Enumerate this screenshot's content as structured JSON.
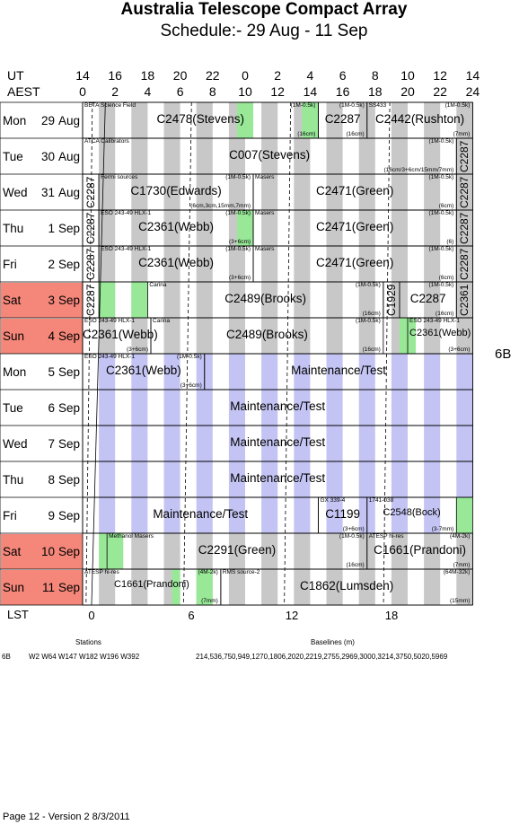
{
  "title": "Australia Telescope Compact Array",
  "subtitle": "Schedule:- 29 Aug - 11 Sep",
  "axis": {
    "ut_label": "UT",
    "aest_label": "AEST",
    "ut_ticks": [
      "14",
      "16",
      "18",
      "20",
      "22",
      "0",
      "2",
      "4",
      "6",
      "8",
      "10",
      "12",
      "14"
    ],
    "aest_ticks": [
      "0",
      "2",
      "4",
      "6",
      "8",
      "10",
      "12",
      "14",
      "16",
      "18",
      "20",
      "22",
      "24"
    ],
    "lst_label": "LST",
    "lst_ticks": [
      "0",
      "6",
      "12",
      "18"
    ]
  },
  "days": [
    {
      "dow": "Mon",
      "num": "29",
      "mon": "Aug",
      "weekend": false
    },
    {
      "dow": "Tue",
      "num": "30",
      "mon": "Aug",
      "weekend": false
    },
    {
      "dow": "Wed",
      "num": "31",
      "mon": "Aug",
      "weekend": false
    },
    {
      "dow": "Thu",
      "num": "1",
      "mon": "Sep",
      "weekend": false
    },
    {
      "dow": "Fri",
      "num": "2",
      "mon": "Sep",
      "weekend": false
    },
    {
      "dow": "Sat",
      "num": "3",
      "mon": "Sep",
      "weekend": true
    },
    {
      "dow": "Sun",
      "num": "4",
      "mon": "Sep",
      "weekend": true
    },
    {
      "dow": "Mon",
      "num": "5",
      "mon": "Sep",
      "weekend": false
    },
    {
      "dow": "Tue",
      "num": "6",
      "mon": "Sep",
      "weekend": false
    },
    {
      "dow": "Wed",
      "num": "7",
      "mon": "Sep",
      "weekend": false
    },
    {
      "dow": "Thu",
      "num": "8",
      "mon": "Sep",
      "weekend": false
    },
    {
      "dow": "Fri",
      "num": "9",
      "mon": "Sep",
      "weekend": false
    },
    {
      "dow": "Sat",
      "num": "10",
      "mon": "Sep",
      "weekend": true
    },
    {
      "dow": "Sun",
      "num": "11",
      "mon": "Sep",
      "weekend": true
    }
  ],
  "blocks": [
    {
      "row": 0,
      "s": 0,
      "e": 14.5,
      "label": "C2478(Stevens)",
      "tl": "BETA Science Field",
      "tr": "(1M-0.5k)",
      "br": "(16cm)"
    },
    {
      "row": 0,
      "s": 14.5,
      "e": 17.5,
      "label": "C2287",
      "tr": "(1M-0.5k)",
      "br": "(16cm)"
    },
    {
      "row": 0,
      "s": 17.5,
      "e": 24,
      "label": "C2442(Rushton)",
      "tl": "SS433",
      "tr": "(1M-0.5k)",
      "br": "(7mm)"
    },
    {
      "row": 1,
      "s": 0,
      "e": 23,
      "label": "C007(Stevens)",
      "tl": "ATCA Calibrators",
      "tr": "(1M-0.5k)",
      "br": "(16cm/3+6cm/15mm/7mm)"
    },
    {
      "row": 1,
      "s": 23,
      "e": 24,
      "vlabel": "C2287"
    },
    {
      "row": 2,
      "s": 0,
      "e": 1,
      "vlabel": "C2287"
    },
    {
      "row": 2,
      "s": 1,
      "e": 10.5,
      "label": "C1730(Edwards)",
      "tl": "Fermi sources",
      "tr": "(1M-0.5k)",
      "br": "(6cm,3cm,15mm,7mm)"
    },
    {
      "row": 2,
      "s": 10.5,
      "e": 23,
      "label": "C2471(Green)",
      "tl": "Masers",
      "tr": "(1M-0.5k)",
      "br": "(6cm)"
    },
    {
      "row": 2,
      "s": 23,
      "e": 24,
      "vlabel": "C2287"
    },
    {
      "row": 3,
      "s": 0,
      "e": 1,
      "vlabel": "C2287"
    },
    {
      "row": 3,
      "s": 1,
      "e": 10.5,
      "label": "C2361(Webb)",
      "tl": "ESO 243-49 HLX-1",
      "tr": "(1M-0.5k)",
      "br": "(3+6cm)"
    },
    {
      "row": 3,
      "s": 10.5,
      "e": 23,
      "label": "C2471(Green)",
      "tl": "Masers",
      "tr": "(1M-0.5k)",
      "br": "(6)"
    },
    {
      "row": 3,
      "s": 23,
      "e": 24,
      "vlabel": "C2287"
    },
    {
      "row": 4,
      "s": 0,
      "e": 1,
      "vlabel": "C2287"
    },
    {
      "row": 4,
      "s": 1,
      "e": 10.5,
      "label": "C2361(Webb)",
      "tl": "ESO 243-49 HLX-1",
      "tr": "(1M-0.5k)",
      "br": "(3+6cm)"
    },
    {
      "row": 4,
      "s": 10.5,
      "e": 23,
      "label": "C2471(Green)",
      "tl": "Masers",
      "tr": "(1M-0.5k)",
      "br": "(6cm)"
    },
    {
      "row": 4,
      "s": 23,
      "e": 24,
      "vlabel": "C2287"
    },
    {
      "row": 5,
      "s": 0,
      "e": 1,
      "vlabel": "C2287"
    },
    {
      "row": 5,
      "s": 4,
      "e": 18.5,
      "label": "C2489(Brooks)",
      "tl": "Carina",
      "tr": "(1M-0.5k)",
      "br": "(16cm)"
    },
    {
      "row": 5,
      "s": 18.5,
      "e": 19.5,
      "vlabel": "C1929"
    },
    {
      "row": 5,
      "s": 19.5,
      "e": 23,
      "label": "C2287",
      "tr": "(1M-0.5k)",
      "br": "(16cm)"
    },
    {
      "row": 5,
      "s": 23,
      "e": 24,
      "vlabel": "C2361"
    },
    {
      "row": 6,
      "s": 0,
      "e": 4.2,
      "label": "C2361(Webb)",
      "tl": "ESO 243-49 HLX-1",
      "br": "(3+6cm)"
    },
    {
      "row": 6,
      "s": 4.2,
      "e": 18.5,
      "label": "C2489(Brooks)",
      "tl": "Carina",
      "tr": "(1M-0.5k)",
      "br": "(16cm)"
    },
    {
      "row": 6,
      "s": 20,
      "e": 24,
      "label": "C2361(Webb)",
      "tl": "ESO 243-49 HLX-1",
      "br": "(3+6cm)",
      "small": true
    },
    {
      "row": 7,
      "s": 0,
      "e": 7.5,
      "label": "C2361(Webb)",
      "tl": "ESO 243-49 HLX-1",
      "tr": "(1M-0.5k)",
      "br": "(3+6cm)"
    },
    {
      "row": 7,
      "s": 7.5,
      "e": 24,
      "label": "Maintenance/Test"
    },
    {
      "row": 8,
      "s": 0,
      "e": 24,
      "label": "Maintenance/Test"
    },
    {
      "row": 9,
      "s": 0,
      "e": 24,
      "label": "Maintenance/Test"
    },
    {
      "row": 10,
      "s": 0,
      "e": 24,
      "label": "Maintenance/Test"
    },
    {
      "row": 11,
      "s": 0,
      "e": 14.5,
      "label": "Maintenance/Test"
    },
    {
      "row": 11,
      "s": 14.5,
      "e": 17.5,
      "label": "C1199",
      "tl": "GX 339-4",
      "br": "(3+6cm)"
    },
    {
      "row": 11,
      "s": 17.5,
      "e": 23,
      "label": "C2548(Bock)",
      "tl": "1741-038",
      "br": "(3-7mm)",
      "small": true
    },
    {
      "row": 12,
      "s": 1.5,
      "e": 17.5,
      "label": "C2291(Green)",
      "tl": "Methanol Masers",
      "tr": "(1M-0.5k)",
      "br": "(16cm)"
    },
    {
      "row": 12,
      "s": 17.5,
      "e": 24,
      "label": "C1661(Prandoni)",
      "tl": "ATESP hi-res",
      "tr": "(4M-2k)",
      "br": "(7mm)"
    },
    {
      "row": 13,
      "s": 0,
      "e": 8.5,
      "label": "C1661(Prandoni)",
      "tl": "ATESP hi-res",
      "tr": "(4M-2k)",
      "br": "(7mm)",
      "small": true
    },
    {
      "row": 13,
      "s": 8.5,
      "e": 24,
      "label": "C1862(Lumsden)",
      "tl": "RMS source-2",
      "tr": "(64M-32k)",
      "br": "(15mm)"
    }
  ],
  "array_config": "6B",
  "footer": {
    "stations_title": "Stations",
    "baselines_title": "Baselines (m)",
    "config": "6B",
    "stations": "W2 W64 W147 W182 W196 W392",
    "baselines": "214,536,750,949,1270,1806,2020,2219,2755,2969,3000,3214,3750,5020,5969"
  },
  "page_footer": "Page 12 - Version 2  8/3/2011",
  "colors": {
    "weekend": "#f4877a",
    "night": "#c8c8c8",
    "maintenance_band": "#c4c4f4",
    "green": "#98e898"
  }
}
